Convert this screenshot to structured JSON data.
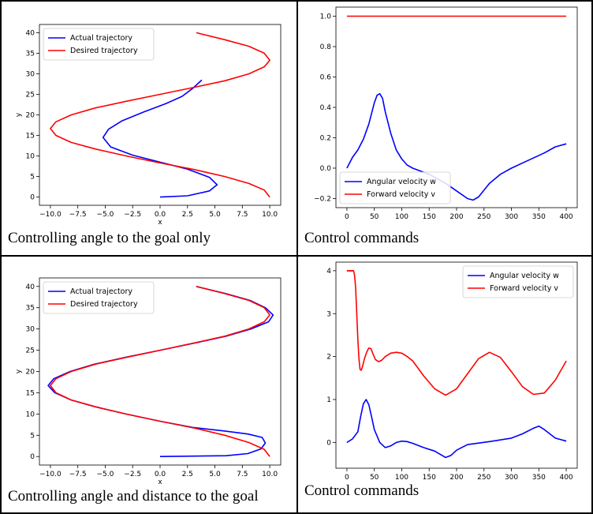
{
  "panels": [
    {
      "caption": "Controlling angle to the goal only"
    },
    {
      "caption": "Control commands"
    },
    {
      "caption": "Controlling angle and distance to the goal"
    },
    {
      "caption": "Control commands"
    }
  ],
  "colors": {
    "actual": "#0000ff",
    "desired": "#ff0000"
  },
  "chart_data": [
    {
      "type": "line",
      "xlabel": "x",
      "ylabel": "y",
      "xlim": [
        -11,
        11
      ],
      "ylim": [
        -2,
        42
      ],
      "xticks": [
        -10,
        -7.5,
        -5,
        -2.5,
        0,
        2.5,
        5,
        7.5,
        10
      ],
      "xtick_labels": [
        "−10.0",
        "−7.5",
        "−5.0",
        "−2.5",
        "0.0",
        "2.5",
        "5.0",
        "7.5",
        "10.0"
      ],
      "yticks": [
        0,
        5,
        10,
        15,
        20,
        25,
        30,
        35,
        40
      ],
      "ytick_labels": [
        "0",
        "5",
        "10",
        "15",
        "20",
        "25",
        "30",
        "35",
        "40"
      ],
      "legend": "top-left",
      "series": [
        {
          "name": "Actual trajectory",
          "color": "#0000ff",
          "x": [
            0,
            2.5,
            4.5,
            5.2,
            4.5,
            2.5,
            0,
            -2.5,
            -4.5,
            -5.2,
            -4.7,
            -3.5,
            -1.5,
            0.5,
            2.0,
            3.0,
            3.8
          ],
          "y": [
            0,
            0.3,
            1.5,
            3.0,
            4.8,
            6.8,
            8.5,
            10.2,
            12.2,
            14.5,
            16.5,
            18.5,
            20.7,
            22.7,
            24.5,
            26.5,
            28.5
          ]
        },
        {
          "name": "Desired trajectory",
          "color": "#ff0000",
          "x": [
            10,
            9.5,
            8.1,
            5.9,
            3.1,
            0,
            -3.1,
            -5.9,
            -8.1,
            -9.5,
            -10,
            -9.5,
            -8.1,
            -5.9,
            -3.1,
            0,
            3.1,
            5.9,
            8.1,
            9.5,
            10,
            9.5,
            8.1,
            5.9,
            3.3
          ],
          "y": [
            0,
            1.7,
            3.3,
            5.0,
            6.7,
            8.3,
            10.0,
            11.7,
            13.3,
            15.0,
            16.7,
            18.3,
            20.0,
            21.7,
            23.3,
            25.0,
            26.7,
            28.3,
            30.0,
            31.7,
            33.3,
            35.0,
            36.7,
            38.3,
            40.0
          ]
        }
      ]
    },
    {
      "type": "line",
      "xlim": [
        -20,
        420
      ],
      "ylim": [
        -0.26,
        1.06
      ],
      "xticks": [
        0,
        50,
        100,
        150,
        200,
        250,
        300,
        350,
        400
      ],
      "xtick_labels": [
        "0",
        "50",
        "100",
        "150",
        "200",
        "250",
        "300",
        "350",
        "400"
      ],
      "yticks": [
        -0.2,
        0,
        0.2,
        0.4,
        0.6,
        0.8,
        1.0
      ],
      "ytick_labels": [
        "−0.2",
        "0.0",
        "0.2",
        "0.4",
        "0.6",
        "0.8",
        "1.0"
      ],
      "legend": "bottom-left",
      "series": [
        {
          "name": "Angular velocity w",
          "color": "#0000ff",
          "x": [
            0,
            10,
            20,
            30,
            40,
            50,
            55,
            60,
            65,
            70,
            80,
            90,
            100,
            110,
            120,
            150,
            180,
            200,
            220,
            230,
            240,
            260,
            280,
            300,
            330,
            360,
            380,
            400
          ],
          "y": [
            0,
            0.07,
            0.12,
            0.19,
            0.29,
            0.43,
            0.48,
            0.49,
            0.46,
            0.37,
            0.23,
            0.12,
            0.06,
            0.02,
            0.0,
            -0.04,
            -0.1,
            -0.15,
            -0.2,
            -0.21,
            -0.19,
            -0.1,
            -0.04,
            0.0,
            0.05,
            0.1,
            0.14,
            0.16
          ]
        },
        {
          "name": "Forward velocity v",
          "color": "#ff0000",
          "x": [
            0,
            400
          ],
          "y": [
            1.0,
            1.0
          ]
        }
      ]
    },
    {
      "type": "line",
      "xlabel": "x",
      "ylabel": "y",
      "xlim": [
        -11,
        11
      ],
      "ylim": [
        -2,
        42
      ],
      "xticks": [
        -10,
        -7.5,
        -5,
        -2.5,
        0,
        2.5,
        5,
        7.5,
        10
      ],
      "xtick_labels": [
        "−10.0",
        "−7.5",
        "−5.0",
        "−2.5",
        "0.0",
        "2.5",
        "5.0",
        "7.5",
        "10.0"
      ],
      "yticks": [
        0,
        5,
        10,
        15,
        20,
        25,
        30,
        35,
        40
      ],
      "ytick_labels": [
        "0",
        "5",
        "10",
        "15",
        "20",
        "25",
        "30",
        "35",
        "40"
      ],
      "legend": "top-left",
      "series": [
        {
          "name": "Actual trajectory",
          "color": "#0000ff",
          "x": [
            0,
            3.0,
            6.0,
            8.0,
            9.2,
            9.6,
            9.3,
            8.0,
            5.9,
            3.1,
            0,
            -3.1,
            -5.9,
            -8.1,
            -9.6,
            -10.2,
            -9.7,
            -8.2,
            -6.0,
            -3.2,
            0,
            3.2,
            6.0,
            8.3,
            9.9,
            10.3,
            9.6,
            8.2,
            6.0,
            3.3
          ],
          "y": [
            0,
            0.1,
            0.2,
            0.7,
            1.8,
            3.2,
            4.5,
            5.3,
            6.0,
            6.8,
            8.3,
            10.0,
            11.7,
            13.3,
            15.0,
            16.7,
            18.3,
            20.0,
            21.7,
            23.3,
            25.0,
            26.7,
            28.3,
            30.0,
            31.7,
            33.3,
            35.0,
            36.7,
            38.3,
            40.0
          ]
        },
        {
          "name": "Desired trajectory",
          "color": "#ff0000",
          "x": [
            10,
            9.5,
            8.1,
            5.9,
            3.1,
            0,
            -3.1,
            -5.9,
            -8.1,
            -9.5,
            -10,
            -9.5,
            -8.1,
            -5.9,
            -3.1,
            0,
            3.1,
            5.9,
            8.1,
            9.5,
            10,
            9.5,
            8.1,
            5.9,
            3.3
          ],
          "y": [
            0,
            1.7,
            3.3,
            5.0,
            6.7,
            8.3,
            10.0,
            11.7,
            13.3,
            15.0,
            16.7,
            18.3,
            20.0,
            21.7,
            23.3,
            25.0,
            26.7,
            28.3,
            30.0,
            31.7,
            33.3,
            35.0,
            36.7,
            38.3,
            40.0
          ]
        }
      ]
    },
    {
      "type": "line",
      "xlim": [
        -20,
        420
      ],
      "ylim": [
        -0.6,
        4.2
      ],
      "xticks": [
        0,
        50,
        100,
        150,
        200,
        250,
        300,
        350,
        400
      ],
      "xtick_labels": [
        "0",
        "50",
        "100",
        "150",
        "200",
        "250",
        "300",
        "350",
        "400"
      ],
      "yticks": [
        0,
        1,
        2,
        3,
        4
      ],
      "ytick_labels": [
        "0",
        "1",
        "2",
        "3",
        "4"
      ],
      "legend": "top-right",
      "series": [
        {
          "name": "Angular velocity w",
          "color": "#0000ff",
          "x": [
            0,
            10,
            20,
            25,
            30,
            35,
            40,
            45,
            50,
            60,
            70,
            80,
            90,
            100,
            110,
            120,
            140,
            160,
            180,
            190,
            200,
            220,
            260,
            300,
            320,
            340,
            350,
            360,
            380,
            400
          ],
          "y": [
            0,
            0.08,
            0.25,
            0.6,
            0.9,
            1.0,
            0.88,
            0.6,
            0.3,
            0.0,
            -0.12,
            -0.08,
            0.0,
            0.03,
            0.02,
            -0.02,
            -0.12,
            -0.2,
            -0.35,
            -0.3,
            -0.18,
            -0.05,
            0.02,
            0.1,
            0.2,
            0.33,
            0.38,
            0.3,
            0.1,
            0.03
          ]
        },
        {
          "name": "Forward velocity v",
          "color": "#ff0000",
          "x": [
            0,
            12,
            14,
            16,
            18,
            20,
            22,
            24,
            26,
            28,
            32,
            36,
            40,
            44,
            48,
            52,
            58,
            64,
            70,
            80,
            90,
            100,
            110,
            120,
            140,
            160,
            180,
            200,
            220,
            240,
            260,
            280,
            300,
            320,
            340,
            360,
            380,
            400
          ],
          "y": [
            4.0,
            4.0,
            3.9,
            3.6,
            3.0,
            2.4,
            1.95,
            1.7,
            1.68,
            1.75,
            1.95,
            2.1,
            2.2,
            2.18,
            2.05,
            1.93,
            1.88,
            1.92,
            2.0,
            2.08,
            2.1,
            2.08,
            2.0,
            1.9,
            1.55,
            1.25,
            1.1,
            1.25,
            1.6,
            1.95,
            2.1,
            1.98,
            1.65,
            1.3,
            1.12,
            1.15,
            1.45,
            1.9
          ]
        },
        {
          "name": "",
          "color": "#ff0000",
          "x": [
            0,
            12
          ],
          "y": [
            4.0,
            4.0
          ]
        }
      ]
    }
  ]
}
